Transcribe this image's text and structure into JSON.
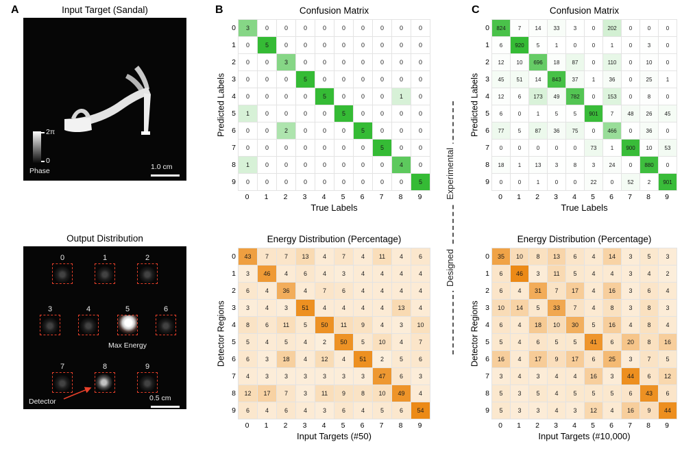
{
  "panels": {
    "a": "A",
    "b": "B",
    "c": "C"
  },
  "panelA": {
    "input": {
      "title": "Input Target (Sandal)",
      "colorbar_max": "2π",
      "colorbar_min": "0",
      "colorbar_label": "Phase",
      "scalebar": "1.0 cm"
    },
    "output": {
      "title": "Output Distribution",
      "regions": [
        "0",
        "1",
        "2",
        "3",
        "4",
        "5",
        "6",
        "7",
        "8",
        "9"
      ],
      "max_energy_label": "Max Energy",
      "detector_label": "Detector",
      "scalebar": "0.5 cm"
    }
  },
  "divider": {
    "top": "Experimental",
    "bottom": "Designed"
  },
  "chart_data": [
    {
      "id": "b_confusion",
      "type": "heatmap",
      "title": "Confusion Matrix",
      "xlabel": "True Labels",
      "ylabel": "Predicted Labels",
      "ticks": [
        "0",
        "1",
        "2",
        "3",
        "4",
        "5",
        "6",
        "7",
        "8",
        "9"
      ],
      "colormap": {
        "low": "#ffffff",
        "high": "#35bb35"
      },
      "vmax": 5,
      "values": [
        [
          3,
          0,
          0,
          0,
          0,
          0,
          0,
          0,
          0,
          0
        ],
        [
          0,
          5,
          0,
          0,
          0,
          0,
          0,
          0,
          0,
          0
        ],
        [
          0,
          0,
          3,
          0,
          0,
          0,
          0,
          0,
          0,
          0
        ],
        [
          0,
          0,
          0,
          5,
          0,
          0,
          0,
          0,
          0,
          0
        ],
        [
          0,
          0,
          0,
          0,
          5,
          0,
          0,
          0,
          1,
          0
        ],
        [
          1,
          0,
          0,
          0,
          0,
          5,
          0,
          0,
          0,
          0
        ],
        [
          0,
          0,
          2,
          0,
          0,
          0,
          5,
          0,
          0,
          0
        ],
        [
          0,
          0,
          0,
          0,
          0,
          0,
          0,
          5,
          0,
          0
        ],
        [
          1,
          0,
          0,
          0,
          0,
          0,
          0,
          0,
          4,
          0
        ],
        [
          0,
          0,
          0,
          0,
          0,
          0,
          0,
          0,
          0,
          5
        ]
      ]
    },
    {
      "id": "b_energy",
      "type": "heatmap",
      "title": "Energy Distribution (Percentage)",
      "xlabel": "Input Targets (#50)",
      "ylabel": "Detector Regions",
      "ticks": [
        "0",
        "1",
        "2",
        "3",
        "4",
        "5",
        "6",
        "7",
        "8",
        "9"
      ],
      "colormap": {
        "low": "#fdf3e4",
        "high": "#ec8a16"
      },
      "vmax": 54,
      "values": [
        [
          43,
          7,
          7,
          13,
          4,
          7,
          4,
          11,
          4,
          6
        ],
        [
          3,
          46,
          4,
          6,
          4,
          3,
          4,
          4,
          4,
          4
        ],
        [
          6,
          4,
          36,
          4,
          7,
          6,
          4,
          4,
          4,
          4
        ],
        [
          3,
          4,
          3,
          51,
          4,
          4,
          4,
          4,
          13,
          4
        ],
        [
          8,
          6,
          11,
          5,
          50,
          11,
          9,
          4,
          3,
          10
        ],
        [
          5,
          4,
          5,
          4,
          2,
          50,
          5,
          10,
          4,
          7
        ],
        [
          6,
          3,
          18,
          4,
          12,
          4,
          51,
          2,
          5,
          6
        ],
        [
          4,
          3,
          3,
          3,
          3,
          3,
          3,
          47,
          6,
          3
        ],
        [
          12,
          17,
          7,
          3,
          11,
          9,
          8,
          10,
          49,
          4
        ],
        [
          6,
          4,
          6,
          4,
          3,
          6,
          4,
          5,
          6,
          54
        ]
      ]
    },
    {
      "id": "c_confusion",
      "type": "heatmap",
      "title": "Confusion Matrix",
      "xlabel": "True Labels",
      "ylabel": "Predicted Labels",
      "ticks": [
        "0",
        "1",
        "2",
        "3",
        "4",
        "5",
        "6",
        "7",
        "8",
        "9"
      ],
      "colormap": {
        "low": "#ffffff",
        "high": "#35bb35"
      },
      "vmax": 920,
      "values": [
        [
          824,
          7,
          14,
          33,
          3,
          0,
          202,
          0,
          0,
          0
        ],
        [
          6,
          920,
          5,
          1,
          0,
          0,
          1,
          0,
          3,
          0
        ],
        [
          12,
          10,
          696,
          18,
          87,
          0,
          110,
          0,
          10,
          0
        ],
        [
          45,
          51,
          14,
          843,
          37,
          1,
          36,
          0,
          25,
          1
        ],
        [
          12,
          6,
          173,
          49,
          782,
          0,
          153,
          0,
          8,
          0
        ],
        [
          6,
          0,
          1,
          5,
          5,
          901,
          7,
          48,
          26,
          45
        ],
        [
          77,
          5,
          87,
          36,
          75,
          0,
          466,
          0,
          36,
          0
        ],
        [
          0,
          0,
          0,
          0,
          0,
          73,
          1,
          900,
          10,
          53
        ],
        [
          18,
          1,
          13,
          3,
          8,
          3,
          24,
          0,
          880,
          0
        ],
        [
          0,
          0,
          1,
          0,
          0,
          22,
          0,
          52,
          2,
          901
        ]
      ]
    },
    {
      "id": "c_energy",
      "type": "heatmap",
      "title": "Energy Distribution (Percentage)",
      "xlabel": "Input Targets (#10,000)",
      "ylabel": "Detector Regions",
      "ticks": [
        "0",
        "1",
        "2",
        "3",
        "4",
        "5",
        "6",
        "7",
        "8",
        "9"
      ],
      "colormap": {
        "low": "#fdf3e4",
        "high": "#ec8a16"
      },
      "vmax": 46,
      "values": [
        [
          35,
          10,
          8,
          13,
          6,
          4,
          14,
          3,
          5,
          3
        ],
        [
          6,
          46,
          3,
          11,
          5,
          4,
          4,
          3,
          4,
          2
        ],
        [
          6,
          4,
          31,
          7,
          17,
          4,
          16,
          3,
          6,
          4
        ],
        [
          10,
          14,
          5,
          33,
          7,
          4,
          8,
          3,
          8,
          3
        ],
        [
          6,
          4,
          18,
          10,
          30,
          5,
          16,
          4,
          8,
          4
        ],
        [
          5,
          4,
          6,
          5,
          5,
          41,
          6,
          20,
          8,
          16
        ],
        [
          16,
          4,
          17,
          9,
          17,
          6,
          25,
          3,
          7,
          5
        ],
        [
          3,
          4,
          3,
          4,
          4,
          16,
          3,
          44,
          6,
          12
        ],
        [
          5,
          3,
          5,
          4,
          5,
          5,
          5,
          6,
          43,
          6
        ],
        [
          5,
          3,
          3,
          4,
          3,
          12,
          4,
          16,
          9,
          44
        ]
      ]
    }
  ]
}
